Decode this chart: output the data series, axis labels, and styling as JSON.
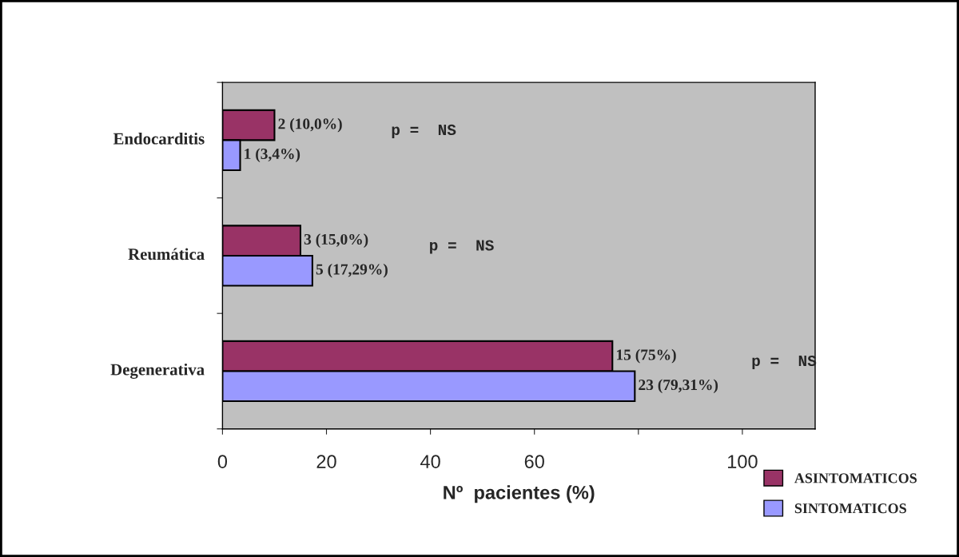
{
  "chart_data": {
    "type": "bar",
    "orientation": "horizontal",
    "categories": [
      "Endocarditis",
      "Reumática",
      "Degenerativa"
    ],
    "series": [
      {
        "name": "ASINTOMATICOS",
        "color": "#993366",
        "values": [
          10,
          15,
          75
        ],
        "value_labels": [
          "2 (10,0%)",
          "3 (15,0%)",
          "15 (75%)"
        ]
      },
      {
        "name": "SINTOMATICOS",
        "color": "#9999ff",
        "values": [
          3.4,
          17.29,
          79.31
        ],
        "value_labels": [
          "1 (3,4%)",
          "5 (17,29%)",
          "23 (79,31%)"
        ]
      }
    ],
    "xlabel": "Nº  pacientes (%)",
    "xlim": [
      0,
      114
    ],
    "xticks": [
      0,
      20,
      40,
      60,
      {
        "value": 80,
        "label": null
      },
      100
    ],
    "annotations": [
      "p =  NS",
      "p =  NS",
      "p =  NS"
    ],
    "legend": "bottom right",
    "grid": false
  }
}
